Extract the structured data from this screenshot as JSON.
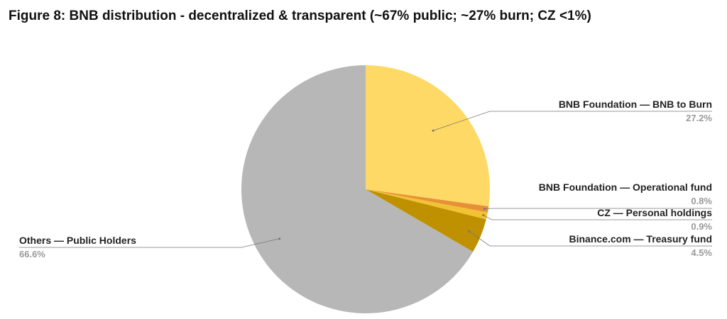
{
  "chart_data": {
    "type": "pie",
    "title": "Figure 8: BNB distribution - decentralized & transparent (~67% public; ~27% burn; CZ <1%)",
    "categories": [
      "BNB Foundation — BNB to Burn",
      "BNB Foundation — Operational fund",
      "CZ — Personal holdings",
      "Binance.com — Treasury fund",
      "Others — Public Holders"
    ],
    "values": [
      27.2,
      0.8,
      0.9,
      4.5,
      66.6
    ],
    "value_labels": [
      "27.2%",
      "0.8%",
      "0.9%",
      "4.5%",
      "66.6%"
    ],
    "colors": [
      "#ffd966",
      "#e69138",
      "#f1c232",
      "#bf9000",
      "#b7b7b7"
    ]
  }
}
